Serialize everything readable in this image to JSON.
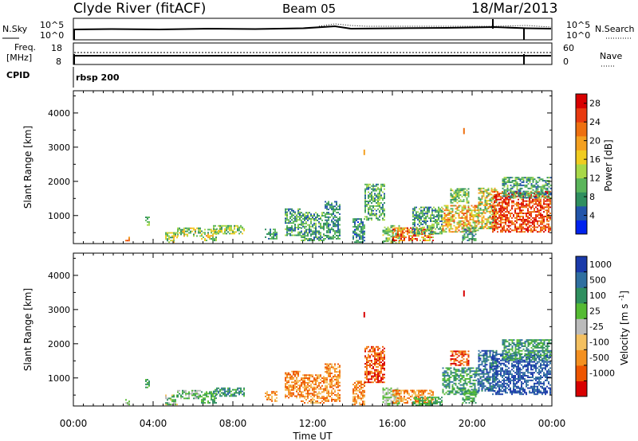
{
  "header": {
    "left_title": "Clyde River (fitACF)",
    "center_title": "Beam 05",
    "right_title": "18/Mar/2013"
  },
  "param_panels": {
    "nsky_label": "N.Sky",
    "nsearch_label": "N.Search",
    "noise_ticks_left": [
      "10^5",
      "10^0"
    ],
    "noise_ticks_right": [
      "10^5",
      "10^0"
    ],
    "freq_label_line1": "Freq.",
    "freq_label_line2": "[MHz]",
    "freq_ticks": [
      "18",
      "8"
    ],
    "nave_label": "Nave",
    "nave_ticks": [
      "60",
      "0"
    ],
    "cpid_label": "CPID",
    "cpid_value": "rbsp 200"
  },
  "colors": {
    "power": [
      "#0022ee",
      "#2255aa",
      "#2f8f5f",
      "#5ab55a",
      "#a8d848",
      "#f0cc20",
      "#f4a020",
      "#ee7010",
      "#e83a10",
      "#d80000"
    ],
    "velocity": [
      "#d80000",
      "#ee5500",
      "#f49020",
      "#f4c060",
      "#bbbbbb",
      "#55bb33",
      "#2f8f5f",
      "#2f6fa0",
      "#1a3aaa"
    ]
  },
  "chart_data": [
    {
      "type": "heatmap",
      "name": "power",
      "ylabel": "Slant Range [km]",
      "xlabel": "Time UT",
      "x_ticks": [
        "00:00",
        "04:00",
        "08:00",
        "12:00",
        "16:00",
        "20:00",
        "00:00"
      ],
      "x_tick_hours": [
        0,
        4,
        8,
        12,
        16,
        20,
        24
      ],
      "xlim_hours": [
        0,
        24
      ],
      "ylim_km": [
        180,
        4650
      ],
      "y_ticks": [
        1000,
        2000,
        3000,
        4000
      ],
      "colorbar_label": "Power [dB]",
      "colorbar_ticks": [
        "28",
        "24",
        "20",
        "16",
        "12",
        "8",
        "4"
      ],
      "colorbar_range": [
        0,
        30
      ],
      "regions": [
        {
          "t0": 2.6,
          "t1": 2.8,
          "r0": 200,
          "r1": 350,
          "v0": 16,
          "v1": 26
        },
        {
          "t0": 3.6,
          "t1": 3.8,
          "r0": 700,
          "r1": 950,
          "v0": 6,
          "v1": 14
        },
        {
          "t0": 4.6,
          "t1": 5.2,
          "r0": 200,
          "r1": 500,
          "v0": 6,
          "v1": 20
        },
        {
          "t0": 5.2,
          "t1": 6.4,
          "r0": 380,
          "r1": 620,
          "v0": 6,
          "v1": 20
        },
        {
          "t0": 6.4,
          "t1": 7.2,
          "r0": 250,
          "r1": 600,
          "v0": 8,
          "v1": 22
        },
        {
          "t0": 7.0,
          "t1": 8.6,
          "r0": 450,
          "r1": 700,
          "v0": 6,
          "v1": 18
        },
        {
          "t0": 9.6,
          "t1": 10.2,
          "r0": 300,
          "r1": 600,
          "v0": 4,
          "v1": 12
        },
        {
          "t0": 10.6,
          "t1": 11.4,
          "r0": 400,
          "r1": 1200,
          "v0": 4,
          "v1": 14
        },
        {
          "t0": 11.4,
          "t1": 12.6,
          "r0": 250,
          "r1": 1100,
          "v0": 4,
          "v1": 14
        },
        {
          "t0": 12.6,
          "t1": 13.4,
          "r0": 300,
          "r1": 1400,
          "v0": 4,
          "v1": 12
        },
        {
          "t0": 14.0,
          "t1": 14.6,
          "r0": 200,
          "r1": 900,
          "v0": 2,
          "v1": 12
        },
        {
          "t0": 14.6,
          "t1": 15.6,
          "r0": 850,
          "r1": 1900,
          "v0": 4,
          "v1": 14
        },
        {
          "t0": 15.5,
          "t1": 16.3,
          "r0": 180,
          "r1": 700,
          "v0": 6,
          "v1": 16
        },
        {
          "t0": 16.0,
          "t1": 18.0,
          "r0": 250,
          "r1": 620,
          "v0": 12,
          "v1": 30
        },
        {
          "t0": 17.0,
          "t1": 18.5,
          "r0": 450,
          "r1": 1250,
          "v0": 4,
          "v1": 14
        },
        {
          "t0": 18.5,
          "t1": 20.3,
          "r0": 500,
          "r1": 1300,
          "v0": 10,
          "v1": 26
        },
        {
          "t0": 18.9,
          "t1": 19.8,
          "r0": 1350,
          "r1": 1800,
          "v0": 6,
          "v1": 16
        },
        {
          "t0": 19.5,
          "t1": 20.2,
          "r0": 250,
          "r1": 650,
          "v0": 4,
          "v1": 12
        },
        {
          "t0": 20.3,
          "t1": 21.2,
          "r0": 600,
          "r1": 1800,
          "v0": 6,
          "v1": 24
        },
        {
          "t0": 21.0,
          "t1": 23.9,
          "r0": 500,
          "r1": 1700,
          "v0": 20,
          "v1": 30
        },
        {
          "t0": 21.5,
          "t1": 23.9,
          "r0": 1500,
          "r1": 2100,
          "v0": 4,
          "v1": 14
        }
      ],
      "streaks": [
        {
          "t": 14.55,
          "r0": 2770,
          "r1": 2930,
          "v": 20
        },
        {
          "t": 19.55,
          "r0": 3380,
          "r1": 3560,
          "v": 22
        }
      ]
    },
    {
      "type": "heatmap",
      "name": "velocity",
      "ylabel": "Slant Range [km]",
      "xlabel": "Time UT",
      "x_ticks": [
        "00:00",
        "04:00",
        "08:00",
        "12:00",
        "16:00",
        "20:00",
        "00:00"
      ],
      "x_tick_hours": [
        0,
        4,
        8,
        12,
        16,
        20,
        24
      ],
      "xlim_hours": [
        0,
        24
      ],
      "ylim_km": [
        180,
        4650
      ],
      "y_ticks": [
        1000,
        2000,
        3000,
        4000
      ],
      "colorbar_label": "Velocity [m s^-1]",
      "colorbar_ticks": [
        "1000",
        "500",
        "100",
        "25",
        "-25",
        "-100",
        "-500",
        "-1000"
      ],
      "regions": [
        {
          "t0": 2.6,
          "t1": 2.8,
          "r0": 200,
          "r1": 350,
          "c0": 4,
          "c1": 5
        },
        {
          "t0": 3.6,
          "t1": 3.8,
          "r0": 700,
          "r1": 950,
          "c0": 5,
          "c1": 6
        },
        {
          "t0": 4.6,
          "t1": 5.2,
          "r0": 200,
          "r1": 500,
          "c0": 3,
          "c1": 6
        },
        {
          "t0": 5.2,
          "t1": 6.4,
          "r0": 380,
          "r1": 620,
          "c0": 4,
          "c1": 6
        },
        {
          "t0": 6.4,
          "t1": 7.2,
          "r0": 250,
          "r1": 600,
          "c0": 5,
          "c1": 6
        },
        {
          "t0": 7.0,
          "t1": 8.6,
          "r0": 450,
          "r1": 700,
          "c0": 5,
          "c1": 7
        },
        {
          "t0": 9.6,
          "t1": 10.2,
          "r0": 300,
          "r1": 600,
          "c0": 1,
          "c1": 3
        },
        {
          "t0": 10.6,
          "t1": 11.4,
          "r0": 400,
          "r1": 1200,
          "c0": 1,
          "c1": 3
        },
        {
          "t0": 11.4,
          "t1": 12.6,
          "r0": 250,
          "r1": 1100,
          "c0": 1,
          "c1": 3
        },
        {
          "t0": 12.6,
          "t1": 13.4,
          "r0": 300,
          "r1": 1400,
          "c0": 1,
          "c1": 3
        },
        {
          "t0": 14.0,
          "t1": 14.6,
          "r0": 200,
          "r1": 900,
          "c0": 1,
          "c1": 3
        },
        {
          "t0": 14.6,
          "t1": 15.6,
          "r0": 850,
          "r1": 1900,
          "c0": 0,
          "c1": 2
        },
        {
          "t0": 15.5,
          "t1": 16.3,
          "r0": 180,
          "r1": 700,
          "c0": 4,
          "c1": 5
        },
        {
          "t0": 16.0,
          "t1": 18.0,
          "r0": 250,
          "r1": 620,
          "c0": 1,
          "c1": 3
        },
        {
          "t0": 17.0,
          "t1": 18.5,
          "r0": 180,
          "r1": 450,
          "c0": 5,
          "c1": 6
        },
        {
          "t0": 18.5,
          "t1": 20.3,
          "r0": 500,
          "r1": 1300,
          "c0": 5,
          "c1": 7
        },
        {
          "t0": 18.9,
          "t1": 19.8,
          "r0": 1350,
          "r1": 1800,
          "c0": 0,
          "c1": 2
        },
        {
          "t0": 19.5,
          "t1": 20.2,
          "r0": 250,
          "r1": 650,
          "c0": 5,
          "c1": 6
        },
        {
          "t0": 20.3,
          "t1": 21.2,
          "r0": 600,
          "r1": 1800,
          "c0": 6,
          "c1": 8
        },
        {
          "t0": 21.0,
          "t1": 23.9,
          "r0": 500,
          "r1": 1700,
          "c0": 7,
          "c1": 8
        },
        {
          "t0": 21.5,
          "t1": 23.9,
          "r0": 1500,
          "r1": 2100,
          "c0": 5,
          "c1": 7
        }
      ],
      "streaks": [
        {
          "t": 14.55,
          "r0": 2770,
          "r1": 2930,
          "c": 0
        },
        {
          "t": 19.55,
          "r0": 3380,
          "r1": 3560,
          "c": 0
        }
      ]
    }
  ]
}
